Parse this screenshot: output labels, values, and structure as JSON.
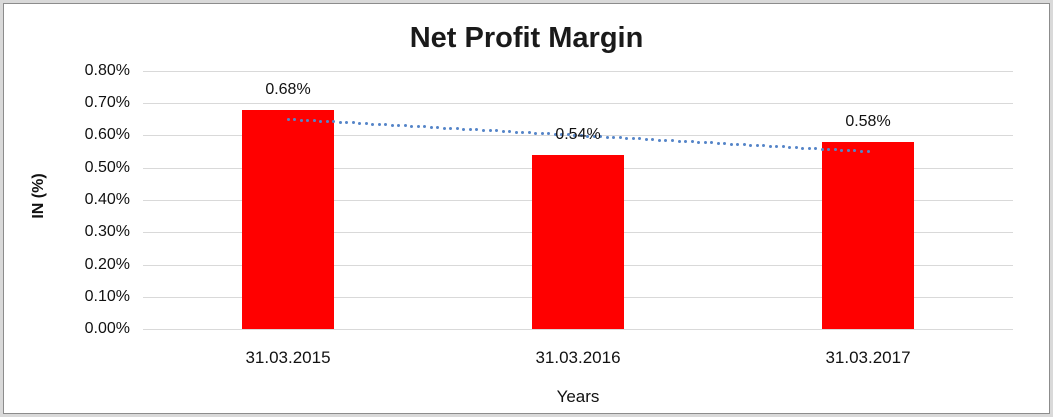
{
  "chart_data": {
    "type": "bar",
    "title": "Net Profit Margin",
    "xlabel": "Years",
    "ylabel": "IN (%)",
    "categories": [
      "31.03.2015",
      "31.03.2016",
      "31.03.2017"
    ],
    "values": [
      0.68,
      0.54,
      0.58
    ],
    "bar_labels": [
      "0.68%",
      "0.54%",
      "0.58%"
    ],
    "ylim": [
      0,
      0.8
    ],
    "ytick_step": 0.1,
    "ytick_labels": [
      "0.00%",
      "0.10%",
      "0.20%",
      "0.30%",
      "0.40%",
      "0.50%",
      "0.60%",
      "0.70%",
      "0.80%"
    ],
    "grid": true,
    "legend": "none",
    "bar_color": "#ff0000",
    "gridline_color": "#d9d9d9",
    "trendline": {
      "type": "linear",
      "style": "dotted",
      "color": "#5585c8",
      "start_value": 0.65,
      "end_value": 0.55
    }
  }
}
